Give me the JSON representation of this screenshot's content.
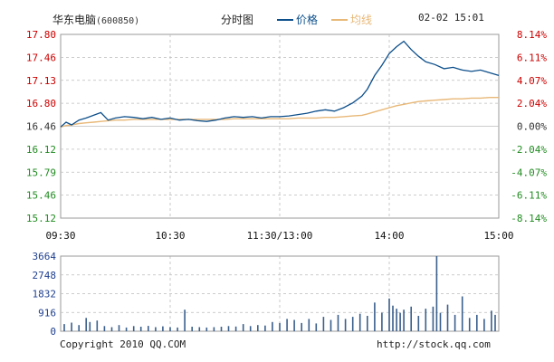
{
  "header": {
    "stock_name": "华东电脑",
    "stock_code": "(600850)",
    "chart_label": "分时图",
    "legend_price": "价格",
    "legend_avg": "均线",
    "datetime": "02-02 15:01"
  },
  "footer": {
    "copyright": "Copyright 2010 QQ.COM",
    "url": "http://stock.qq.com"
  },
  "colors": {
    "price": "#0d4f8b",
    "avg": "#e8b878",
    "up": "#cc0000",
    "down": "#228b22",
    "neutral": "#333333",
    "grid": "#bcbcbc",
    "volume": "#3a5f8c"
  },
  "chart_data": [
    {
      "type": "line",
      "title": "",
      "xlabel": "",
      "ylabel": "",
      "ylim": [
        15.12,
        17.8
      ],
      "reference_price": 16.46,
      "grid": true,
      "x_ticks": [
        "09:30",
        "10:30",
        "11:30/13:00",
        "14:00",
        "15:00"
      ],
      "y_ticks": [
        "17.80",
        "17.46",
        "17.13",
        "16.80",
        "16.46",
        "16.12",
        "15.79",
        "15.46",
        "15.12"
      ],
      "pct_ticks": [
        "8.14%",
        "6.11%",
        "4.07%",
        "2.04%",
        "0.00%",
        "-2.04%",
        "-4.07%",
        "-6.11%",
        "-8.14%"
      ],
      "x_minutes": [
        0,
        3,
        6,
        10,
        14,
        18,
        22,
        26,
        30,
        35,
        40,
        45,
        50,
        55,
        60,
        65,
        70,
        75,
        80,
        85,
        90,
        95,
        100,
        105,
        110,
        115,
        120,
        125,
        130,
        135,
        140,
        145,
        150,
        155,
        160,
        165,
        168,
        172,
        176,
        180,
        184,
        188,
        192,
        196,
        200,
        205,
        210,
        215,
        220,
        225,
        230,
        235,
        240
      ],
      "series": [
        {
          "name": "价格",
          "values": [
            16.45,
            16.52,
            16.48,
            16.55,
            16.58,
            16.62,
            16.66,
            16.55,
            16.58,
            16.6,
            16.59,
            16.57,
            16.59,
            16.56,
            16.58,
            16.55,
            16.56,
            16.54,
            16.53,
            16.55,
            16.58,
            16.6,
            16.59,
            16.6,
            16.58,
            16.6,
            16.6,
            16.61,
            16.63,
            16.65,
            16.68,
            16.7,
            16.68,
            16.73,
            16.8,
            16.9,
            17.0,
            17.2,
            17.35,
            17.52,
            17.62,
            17.7,
            17.58,
            17.48,
            17.4,
            17.36,
            17.3,
            17.32,
            17.28,
            17.26,
            17.28,
            17.24,
            17.2
          ]
        },
        {
          "name": "均线",
          "values": [
            16.45,
            16.47,
            16.48,
            16.5,
            16.51,
            16.52,
            16.53,
            16.54,
            16.55,
            16.55,
            16.56,
            16.56,
            16.56,
            16.56,
            16.56,
            16.56,
            16.56,
            16.56,
            16.56,
            16.56,
            16.56,
            16.57,
            16.57,
            16.57,
            16.57,
            16.57,
            16.57,
            16.57,
            16.58,
            16.58,
            16.58,
            16.59,
            16.59,
            16.6,
            16.61,
            16.62,
            16.64,
            16.67,
            16.7,
            16.73,
            16.76,
            16.78,
            16.8,
            16.82,
            16.83,
            16.84,
            16.85,
            16.86,
            16.86,
            16.87,
            16.87,
            16.88,
            16.88
          ]
        }
      ]
    },
    {
      "type": "bar",
      "title": "",
      "xlabel": "",
      "ylabel": "",
      "ylim": [
        0,
        3664
      ],
      "y_ticks": [
        "3664",
        "2748",
        "1832",
        "916",
        "0"
      ],
      "x_minutes": [
        2,
        6,
        10,
        14,
        16,
        20,
        24,
        28,
        32,
        36,
        40,
        44,
        48,
        52,
        56,
        60,
        64,
        68,
        72,
        76,
        80,
        84,
        88,
        92,
        96,
        100,
        104,
        108,
        112,
        116,
        120,
        124,
        128,
        132,
        136,
        140,
        144,
        148,
        152,
        156,
        160,
        164,
        168,
        172,
        176,
        180,
        182,
        184,
        186,
        188,
        192,
        196,
        200,
        204,
        206,
        208,
        212,
        216,
        220,
        224,
        228,
        232,
        236,
        238
      ],
      "values": [
        350,
        420,
        300,
        650,
        450,
        520,
        250,
        200,
        300,
        180,
        250,
        220,
        260,
        200,
        240,
        200,
        180,
        1050,
        220,
        200,
        180,
        200,
        220,
        250,
        230,
        350,
        250,
        300,
        280,
        450,
        400,
        600,
        550,
        400,
        600,
        380,
        700,
        550,
        800,
        600,
        700,
        850,
        750,
        1400,
        900,
        1600,
        1250,
        1100,
        900,
        1050,
        1200,
        750,
        1100,
        1200,
        3664,
        900,
        1300,
        800,
        1700,
        650,
        800,
        600,
        1000,
        800
      ]
    }
  ]
}
